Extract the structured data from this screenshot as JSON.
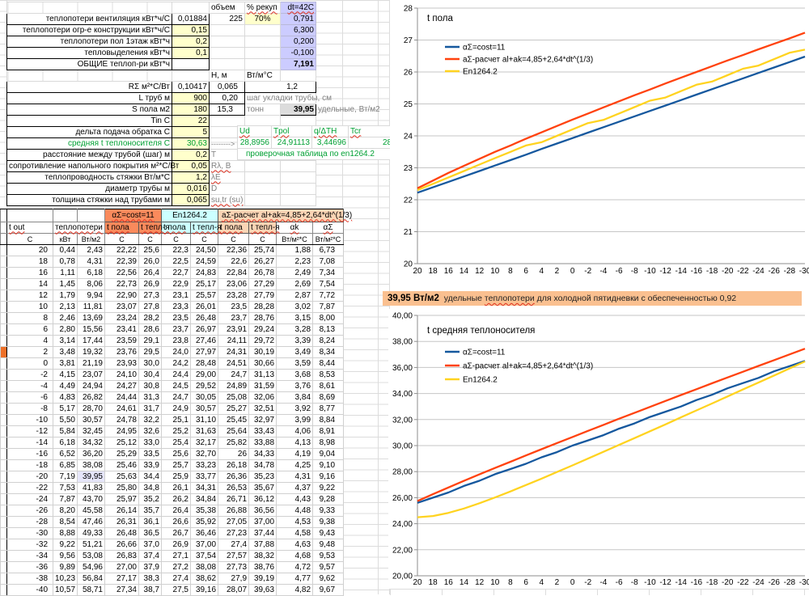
{
  "params": {
    "hdr": {
      "volume": "объем",
      "recup": "% рекуп",
      "dt": "dt=42C"
    },
    "vent": {
      "label": "теплопотери  вентиляция кВт*ч/С",
      "value": "0,01884",
      "volume": "225",
      "recup": "70%",
      "result": "0,791"
    },
    "constr": {
      "label": "теплопотери огр-е конструкции кВт*ч/С",
      "value": "0,15",
      "result": "6,300"
    },
    "floor1": {
      "label": "теплопотери пол 1этаж кВт*ч",
      "value": "0,2",
      "result": "0,200"
    },
    "gains": {
      "label": "тепловыделения кВт*ч",
      "value": "0,1",
      "result": "-0,100"
    },
    "total": {
      "label": "ОБЩИЕ теплоп-ри кВт*ч",
      "result": "7,191"
    },
    "hm_hdr": {
      "h": "Н, м",
      "wt": "Вт/м°С"
    },
    "rsum": {
      "label": "RΣ м²*С/Вт",
      "value": "0,10417",
      "h": "0,065",
      "wt": "1,2"
    },
    "ltrub": {
      "label": "L труб м",
      "value": "900",
      "h": "0,20",
      "note": "шаг укладки трубы, см"
    },
    "spola": {
      "label": "S пола м2",
      "value": "180",
      "h": "15,3",
      "note": "тонн",
      "q": "39,95",
      "note2": "удельные, Вт/м2"
    },
    "tin": {
      "label": "Tin C",
      "value": "22"
    },
    "delta": {
      "label": "дельта подача обратка С",
      "value": "5"
    },
    "sredn": {
      "label": "средняя t теплоносителя С",
      "value": "30,63",
      "arrow": "-------->"
    },
    "rasst": {
      "label": "расстояние между трубой (шаг) м",
      "value": "0,2",
      "note": "T"
    },
    "soprot": {
      "label": "сопротивление напольного покрытия м²*С/Вт",
      "value": "0,05",
      "note": "Rλ, B"
    },
    "teplopr": {
      "label": "теплопроводность стяжки Вт/м*С",
      "value": "1,2",
      "note": "λE"
    },
    "diam": {
      "label": "диаметр трубы м",
      "value": "0,016",
      "note": "D"
    },
    "tolsh": {
      "label": "толщина стяжки над трубами м",
      "value": "0,065",
      "note": "su,tr (su)"
    }
  },
  "check_table": {
    "headers": [
      "Ud",
      "Tpol",
      "q/ΔTH",
      "Tcr"
    ],
    "values": [
      "28,8956",
      "24,91113",
      "3,44696",
      "28,13"
    ],
    "note": "проверочная таблица по  en1264.2"
  },
  "main_table": {
    "group_headers": [
      "αΣ=cost=11",
      "En1264.2",
      "аΣ-расчет al+ak=4,85+2,64*dt^(1/3)"
    ],
    "col_headers": {
      "tout": "t out",
      "losses": "теплопотери",
      "tpol": "t пола",
      "ttepl": "t тепл-я",
      "ak": "αk",
      "asum": "αΣ"
    },
    "units": [
      "C",
      "кВт",
      "Вт/м2",
      "C",
      "C",
      "C",
      "C",
      "C",
      "C",
      "Вт/м²*С",
      "Вт/м²*С"
    ],
    "marker_row": "2",
    "highlight": {
      "row": "-20",
      "col": 2
    },
    "rows": [
      [
        "20",
        "0,44",
        "2,43",
        "22,22",
        "25,6",
        "22,3",
        "24,50",
        "22,36",
        "25,74",
        "1,88",
        "6,73"
      ],
      [
        "18",
        "0,78",
        "4,31",
        "22,39",
        "26,0",
        "22,5",
        "24,59",
        "22,6",
        "26,27",
        "2,23",
        "7,08"
      ],
      [
        "16",
        "1,11",
        "6,18",
        "22,56",
        "26,4",
        "22,7",
        "24,83",
        "22,84",
        "26,78",
        "2,49",
        "7,34"
      ],
      [
        "14",
        "1,45",
        "8,06",
        "22,73",
        "26,9",
        "22,9",
        "25,17",
        "23,06",
        "27,29",
        "2,69",
        "7,54"
      ],
      [
        "12",
        "1,79",
        "9,94",
        "22,90",
        "27,3",
        "23,1",
        "25,57",
        "23,28",
        "27,79",
        "2,87",
        "7,72"
      ],
      [
        "10",
        "2,13",
        "11,81",
        "23,07",
        "27,8",
        "23,3",
        "26,01",
        "23,5",
        "28,28",
        "3,02",
        "7,87"
      ],
      [
        "8",
        "2,46",
        "13,69",
        "23,24",
        "28,2",
        "23,5",
        "26,48",
        "23,7",
        "28,76",
        "3,15",
        "8,00"
      ],
      [
        "6",
        "2,80",
        "15,56",
        "23,41",
        "28,6",
        "23,7",
        "26,97",
        "23,91",
        "29,24",
        "3,28",
        "8,13"
      ],
      [
        "4",
        "3,14",
        "17,44",
        "23,59",
        "29,1",
        "23,8",
        "27,46",
        "24,11",
        "29,72",
        "3,39",
        "8,24"
      ],
      [
        "2",
        "3,48",
        "19,32",
        "23,76",
        "29,5",
        "24,0",
        "27,97",
        "24,31",
        "30,19",
        "3,49",
        "8,34"
      ],
      [
        "0",
        "3,81",
        "21,19",
        "23,93",
        "30,0",
        "24,2",
        "28,48",
        "24,51",
        "30,66",
        "3,59",
        "8,44"
      ],
      [
        "-2",
        "4,15",
        "23,07",
        "24,10",
        "30,4",
        "24,4",
        "29,00",
        "24,7",
        "31,13",
        "3,68",
        "8,53"
      ],
      [
        "-4",
        "4,49",
        "24,94",
        "24,27",
        "30,8",
        "24,5",
        "29,52",
        "24,89",
        "31,59",
        "3,76",
        "8,61"
      ],
      [
        "-6",
        "4,83",
        "26,82",
        "24,44",
        "31,3",
        "24,7",
        "30,05",
        "25,08",
        "32,06",
        "3,84",
        "8,69"
      ],
      [
        "-8",
        "5,17",
        "28,70",
        "24,61",
        "31,7",
        "24,9",
        "30,57",
        "25,27",
        "32,51",
        "3,92",
        "8,77"
      ],
      [
        "-10",
        "5,50",
        "30,57",
        "24,78",
        "32,2",
        "25,1",
        "31,10",
        "25,45",
        "32,97",
        "3,99",
        "8,84"
      ],
      [
        "-12",
        "5,84",
        "32,45",
        "24,95",
        "32,6",
        "25,2",
        "31,63",
        "25,64",
        "33,43",
        "4,06",
        "8,91"
      ],
      [
        "-14",
        "6,18",
        "34,32",
        "25,12",
        "33,0",
        "25,4",
        "32,17",
        "25,82",
        "33,88",
        "4,13",
        "8,98"
      ],
      [
        "-16",
        "6,52",
        "36,20",
        "25,29",
        "33,5",
        "25,6",
        "32,70",
        "26",
        "34,33",
        "4,19",
        "9,04"
      ],
      [
        "-18",
        "6,85",
        "38,08",
        "25,46",
        "33,9",
        "25,7",
        "33,23",
        "26,18",
        "34,78",
        "4,25",
        "9,10"
      ],
      [
        "-20",
        "7,19",
        "39,95",
        "25,63",
        "34,4",
        "25,9",
        "33,77",
        "26,36",
        "35,23",
        "4,31",
        "9,16"
      ],
      [
        "-22",
        "7,53",
        "41,83",
        "25,80",
        "34,8",
        "26,1",
        "34,31",
        "26,53",
        "35,67",
        "4,37",
        "9,22"
      ],
      [
        "-24",
        "7,87",
        "43,70",
        "25,97",
        "35,2",
        "26,2",
        "34,84",
        "26,71",
        "36,12",
        "4,43",
        "9,28"
      ],
      [
        "-26",
        "8,20",
        "45,58",
        "26,14",
        "35,7",
        "26,4",
        "35,38",
        "26,88",
        "36,56",
        "4,48",
        "9,33"
      ],
      [
        "-28",
        "8,54",
        "47,46",
        "26,31",
        "36,1",
        "26,6",
        "35,92",
        "27,05",
        "37,00",
        "4,53",
        "9,38"
      ],
      [
        "-30",
        "8,88",
        "49,33",
        "26,48",
        "36,5",
        "26,7",
        "36,46",
        "27,23",
        "37,44",
        "4,58",
        "9,43"
      ],
      [
        "-32",
        "9,22",
        "51,21",
        "26,66",
        "37,0",
        "26,9",
        "37,00",
        "27,4",
        "37,88",
        "4,63",
        "9,48"
      ],
      [
        "-34",
        "9,56",
        "53,08",
        "26,83",
        "37,4",
        "27,1",
        "37,54",
        "27,57",
        "38,32",
        "4,68",
        "9,53"
      ],
      [
        "-36",
        "9,89",
        "54,96",
        "27,00",
        "37,9",
        "27,2",
        "38,08",
        "27,73",
        "38,76",
        "4,72",
        "9,57"
      ],
      [
        "-38",
        "10,23",
        "56,84",
        "27,17",
        "38,3",
        "27,4",
        "38,62",
        "27,9",
        "39,19",
        "4,77",
        "9,62"
      ],
      [
        "-40",
        "10,57",
        "58,71",
        "27,34",
        "38,7",
        "27,5",
        "39,16",
        "28,07",
        "39,63",
        "4,82",
        "9,67"
      ]
    ]
  },
  "banner": {
    "value": "39,95 Вт/м2",
    "pre": "  удельные ",
    "sq": "теплопотери",
    "post": " для холодной пятидневки с обеспеченностью 0,92"
  },
  "chart_data": [
    {
      "type": "line",
      "title": "t пола",
      "x_labels": [
        "20",
        "18",
        "16",
        "14",
        "12",
        "10",
        "8",
        "6",
        "4",
        "2",
        "0",
        "-2",
        "-4",
        "-6",
        "-8",
        "-10",
        "-12",
        "-14",
        "-16",
        "-18",
        "-20",
        "-22",
        "-24",
        "-26",
        "-28",
        "-30"
      ],
      "xlabel": "",
      "ylabel": "",
      "ylim": [
        20,
        28
      ],
      "ytick": 1,
      "ytick_labels": [
        "28",
        "27",
        "26",
        "25",
        "24",
        "23",
        "22",
        "21",
        "20"
      ],
      "grid": "horizontal",
      "legend_position": "top-left-inside",
      "series": [
        {
          "name": "αΣ=cost=11",
          "color": "#15589E",
          "values": [
            22.22,
            22.39,
            22.56,
            22.73,
            22.9,
            23.07,
            23.24,
            23.41,
            23.59,
            23.76,
            23.93,
            24.1,
            24.27,
            24.44,
            24.61,
            24.78,
            24.95,
            25.12,
            25.29,
            25.46,
            25.63,
            25.8,
            25.97,
            26.14,
            26.31,
            26.48
          ]
        },
        {
          "name": "аΣ-расчет al+ak=4,85+2,64*dt^(1/3)",
          "color": "#FF420E",
          "values": [
            22.36,
            22.6,
            22.84,
            23.06,
            23.28,
            23.5,
            23.7,
            23.91,
            24.11,
            24.31,
            24.51,
            24.7,
            24.89,
            25.08,
            25.27,
            25.45,
            25.64,
            25.82,
            26.0,
            26.18,
            26.36,
            26.53,
            26.71,
            26.88,
            27.05,
            27.23
          ]
        },
        {
          "name": "En1264.2",
          "color": "#FFD320",
          "values": [
            22.3,
            22.5,
            22.7,
            22.9,
            23.1,
            23.3,
            23.5,
            23.7,
            23.8,
            24.0,
            24.2,
            24.4,
            24.5,
            24.7,
            24.9,
            25.1,
            25.2,
            25.4,
            25.6,
            25.7,
            25.9,
            26.1,
            26.2,
            26.4,
            26.6,
            26.7
          ]
        }
      ]
    },
    {
      "type": "line",
      "title": "t средняя теплоносителя",
      "x_labels": [
        "20",
        "18",
        "16",
        "14",
        "12",
        "10",
        "8",
        "6",
        "4",
        "2",
        "0",
        "-2",
        "-4",
        "-6",
        "-8",
        "-10",
        "-12",
        "-14",
        "-16",
        "-18",
        "-20",
        "-22",
        "-24",
        "-26",
        "-28",
        "-30"
      ],
      "xlabel": "",
      "ylabel": "",
      "ylim": [
        20,
        40
      ],
      "ytick": 2,
      "ytick_labels": [
        "40,00",
        "38,00",
        "36,00",
        "34,00",
        "32,00",
        "30,00",
        "28,00",
        "26,00",
        "24,00",
        "22,00",
        "20,00"
      ],
      "grid": "horizontal",
      "legend_position": "top-left-inside",
      "series": [
        {
          "name": "αΣ=cost=11",
          "color": "#15589E",
          "values": [
            25.6,
            26.0,
            26.4,
            26.9,
            27.3,
            27.8,
            28.2,
            28.6,
            29.1,
            29.5,
            30.0,
            30.4,
            30.8,
            31.3,
            31.7,
            32.2,
            32.6,
            33.0,
            33.5,
            33.9,
            34.4,
            34.8,
            35.2,
            35.7,
            36.1,
            36.5
          ]
        },
        {
          "name": "аΣ-расчет al+ak=4,85+2,64*dt^(1/3)",
          "color": "#FF420E",
          "values": [
            25.74,
            26.27,
            26.78,
            27.29,
            27.79,
            28.28,
            28.76,
            29.24,
            29.72,
            30.19,
            30.66,
            31.13,
            31.59,
            32.06,
            32.51,
            32.97,
            33.43,
            33.88,
            34.33,
            34.78,
            35.23,
            35.67,
            36.12,
            36.56,
            37.0,
            37.44
          ]
        },
        {
          "name": "En1264.2",
          "color": "#FFD320",
          "values": [
            24.5,
            24.59,
            24.83,
            25.17,
            25.57,
            26.01,
            26.48,
            26.97,
            27.46,
            27.97,
            28.48,
            29.0,
            29.52,
            30.05,
            30.57,
            31.1,
            31.63,
            32.17,
            32.7,
            33.23,
            33.77,
            34.31,
            34.84,
            35.38,
            35.92,
            36.46
          ]
        }
      ]
    }
  ]
}
